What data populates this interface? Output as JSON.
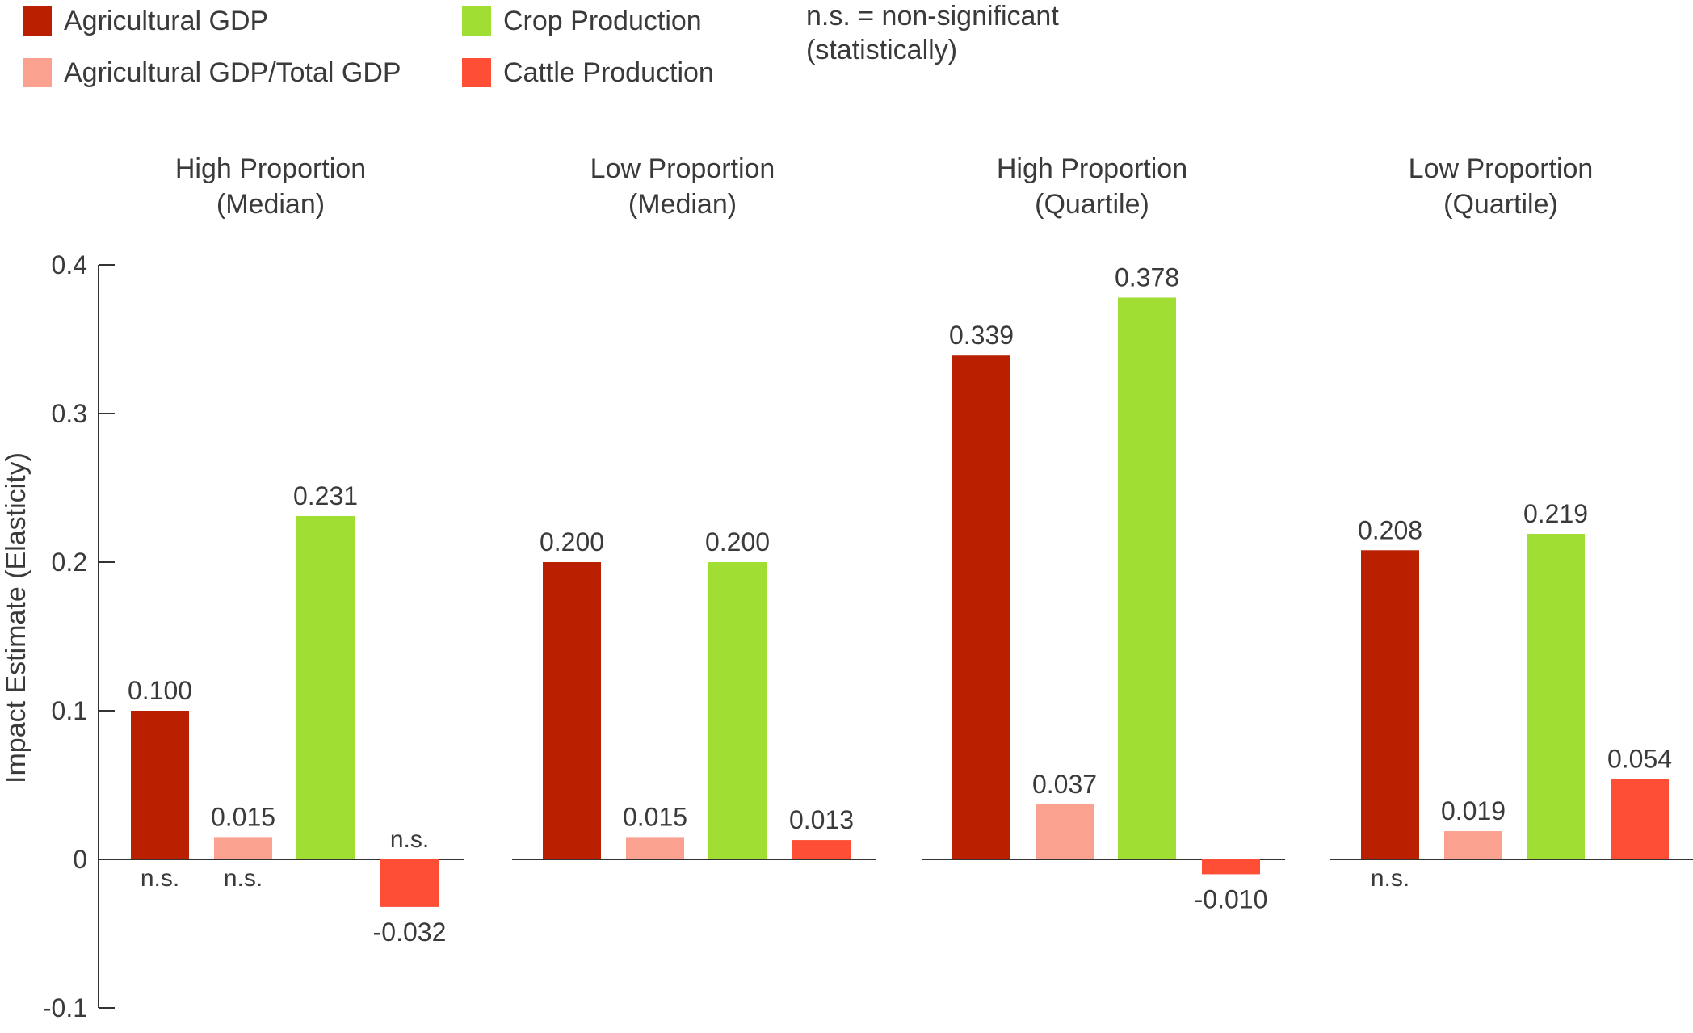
{
  "chart_data": {
    "type": "bar",
    "ylabel": "Impact Estimate (Elasticity)",
    "ylim": [
      -0.1,
      0.4
    ],
    "yticks": [
      {
        "value": -0.1,
        "label": "-0.1"
      },
      {
        "value": 0,
        "label": "0"
      },
      {
        "value": 0.1,
        "label": "0.1"
      },
      {
        "value": 0.2,
        "label": "0.2"
      },
      {
        "value": 0.3,
        "label": "0.3"
      },
      {
        "value": 0.4,
        "label": "0.4"
      }
    ],
    "legend": [
      {
        "name": "Agricultural GDP",
        "color": "#BA2000"
      },
      {
        "name": "Agricultural GDP/Total GDP",
        "color": "#FBA190"
      },
      {
        "name": "Crop Production",
        "color": "#A0DE33"
      },
      {
        "name": "Cattle Production",
        "color": "#FF4E36"
      }
    ],
    "note": [
      "n.s. = non-significant",
      "(statistically)"
    ],
    "panels": [
      {
        "title": [
          "High Proportion",
          "(Median)"
        ],
        "bars": [
          {
            "series": "Agricultural GDP",
            "value": 0.1,
            "label": "0.100",
            "note": "n.s."
          },
          {
            "series": "Agricultural GDP/Total GDP",
            "value": 0.015,
            "label": "0.015",
            "note": "n.s."
          },
          {
            "series": "Crop Production",
            "value": 0.231,
            "label": "0.231",
            "note": ""
          },
          {
            "series": "Cattle Production",
            "value": -0.032,
            "label": "-0.032",
            "note": "n.s."
          }
        ]
      },
      {
        "title": [
          "Low Proportion",
          "(Median)"
        ],
        "bars": [
          {
            "series": "Agricultural GDP",
            "value": 0.2,
            "label": "0.200",
            "note": ""
          },
          {
            "series": "Agricultural GDP/Total GDP",
            "value": 0.015,
            "label": "0.015",
            "note": ""
          },
          {
            "series": "Crop Production",
            "value": 0.2,
            "label": "0.200",
            "note": ""
          },
          {
            "series": "Cattle Production",
            "value": 0.013,
            "label": "0.013",
            "note": ""
          }
        ]
      },
      {
        "title": [
          "High Proportion",
          "(Quartile)"
        ],
        "bars": [
          {
            "series": "Agricultural GDP",
            "value": 0.339,
            "label": "0.339",
            "note": ""
          },
          {
            "series": "Agricultural GDP/Total GDP",
            "value": 0.037,
            "label": "0.037",
            "note": ""
          },
          {
            "series": "Crop Production",
            "value": 0.378,
            "label": "0.378",
            "note": ""
          },
          {
            "series": "Cattle Production",
            "value": -0.01,
            "label": "-0.010",
            "note": ""
          }
        ]
      },
      {
        "title": [
          "Low Proportion",
          "(Quartile)"
        ],
        "bars": [
          {
            "series": "Agricultural GDP",
            "value": 0.208,
            "label": "0.208",
            "note": "n.s."
          },
          {
            "series": "Agricultural GDP/Total GDP",
            "value": 0.019,
            "label": "0.019",
            "note": ""
          },
          {
            "series": "Crop Production",
            "value": 0.219,
            "label": "0.219",
            "note": ""
          },
          {
            "series": "Cattle Production",
            "value": 0.054,
            "label": "0.054",
            "note": ""
          }
        ]
      }
    ]
  }
}
